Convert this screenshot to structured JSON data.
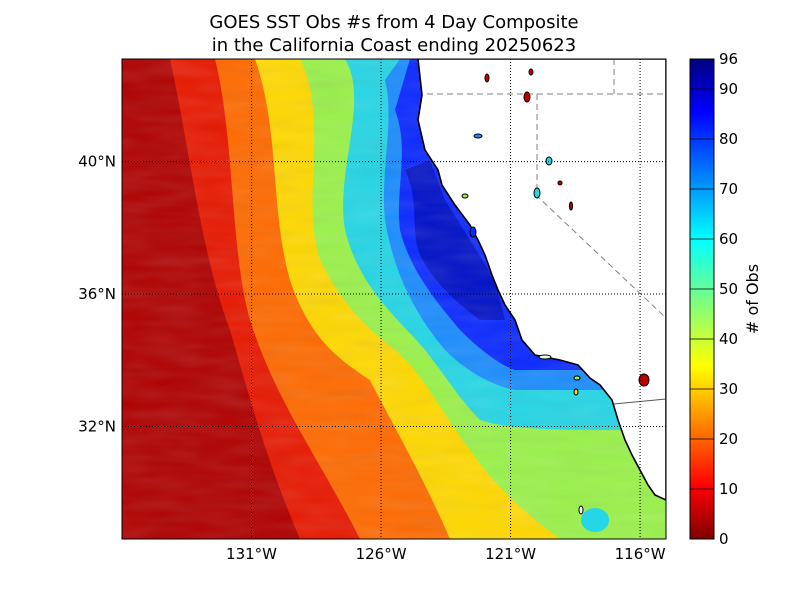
{
  "chart_data": {
    "type": "heatmap",
    "title": [
      "GOES SST Obs #s from 4 Day Composite",
      "in the California Coast ending 20250623"
    ],
    "xlabel": "",
    "ylabel": "",
    "x_ticks": [
      {
        "lon": -131,
        "label": "131°W"
      },
      {
        "lon": -126,
        "label": "126°W"
      },
      {
        "lon": -121,
        "label": "121°W"
      },
      {
        "lon": -116,
        "label": "116°W"
      }
    ],
    "y_ticks": [
      {
        "lat": 32,
        "label": "32°N"
      },
      {
        "lat": 36,
        "label": "36°N"
      },
      {
        "lat": 40,
        "label": "40°N"
      }
    ],
    "xlim": [
      -136,
      -115
    ],
    "ylim": [
      28.6,
      43.1
    ],
    "grid": "dotted",
    "colorbar": {
      "label": "# of Obs",
      "min": 0,
      "max": 96,
      "ticks": [
        0,
        10,
        20,
        30,
        40,
        50,
        60,
        70,
        80,
        90,
        96
      ],
      "colormap": "jet"
    },
    "description_of_field": {
      "offshore_values": "0-30",
      "mid_band_values": "40-65",
      "nearshore_band_values": "70-96"
    }
  },
  "colors": {
    "background": "#ffffff",
    "land": "#ffffff",
    "coastline": "#000000",
    "gridline": "#000000",
    "boundary": "#808080"
  }
}
